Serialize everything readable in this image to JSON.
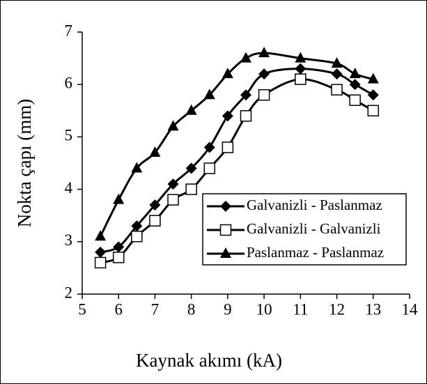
{
  "chart_data": {
    "type": "line",
    "x_label": "Kaynak akımı (kA)",
    "y_label": "Nokta çapı (mm)",
    "x": [
      5.5,
      6,
      6.5,
      7,
      7.5,
      8,
      8.5,
      9,
      9.5,
      10,
      11,
      12,
      12.5,
      13
    ],
    "series": [
      {
        "name": "Galvanizli - Paslanmaz",
        "color": "#000000",
        "marker": "diamond",
        "values": [
          2.8,
          2.9,
          3.3,
          3.7,
          4.1,
          4.4,
          4.8,
          5.4,
          5.8,
          6.2,
          6.3,
          6.2,
          6.0,
          5.8
        ]
      },
      {
        "name": "Galvanizli - Galvanizli",
        "color": "#000000",
        "marker": "square",
        "values": [
          2.6,
          2.7,
          3.1,
          3.4,
          3.8,
          4.0,
          4.4,
          4.8,
          5.4,
          5.8,
          6.1,
          5.9,
          5.7,
          5.5
        ]
      },
      {
        "name": "Paslanmaz - Paslanmaz",
        "color": "#000000",
        "marker": "triangle",
        "values": [
          3.1,
          3.8,
          4.4,
          4.7,
          5.2,
          5.5,
          5.8,
          6.2,
          6.5,
          6.6,
          6.5,
          6.4,
          6.2,
          6.1
        ]
      }
    ],
    "xlim": [
      5,
      14
    ],
    "xticks": [
      5,
      6,
      7,
      8,
      9,
      10,
      11,
      12,
      13,
      14
    ],
    "ylim": [
      2,
      7
    ],
    "yticks": [
      2,
      3,
      4,
      5,
      6,
      7
    ],
    "grid": false,
    "legend": "lower right"
  }
}
